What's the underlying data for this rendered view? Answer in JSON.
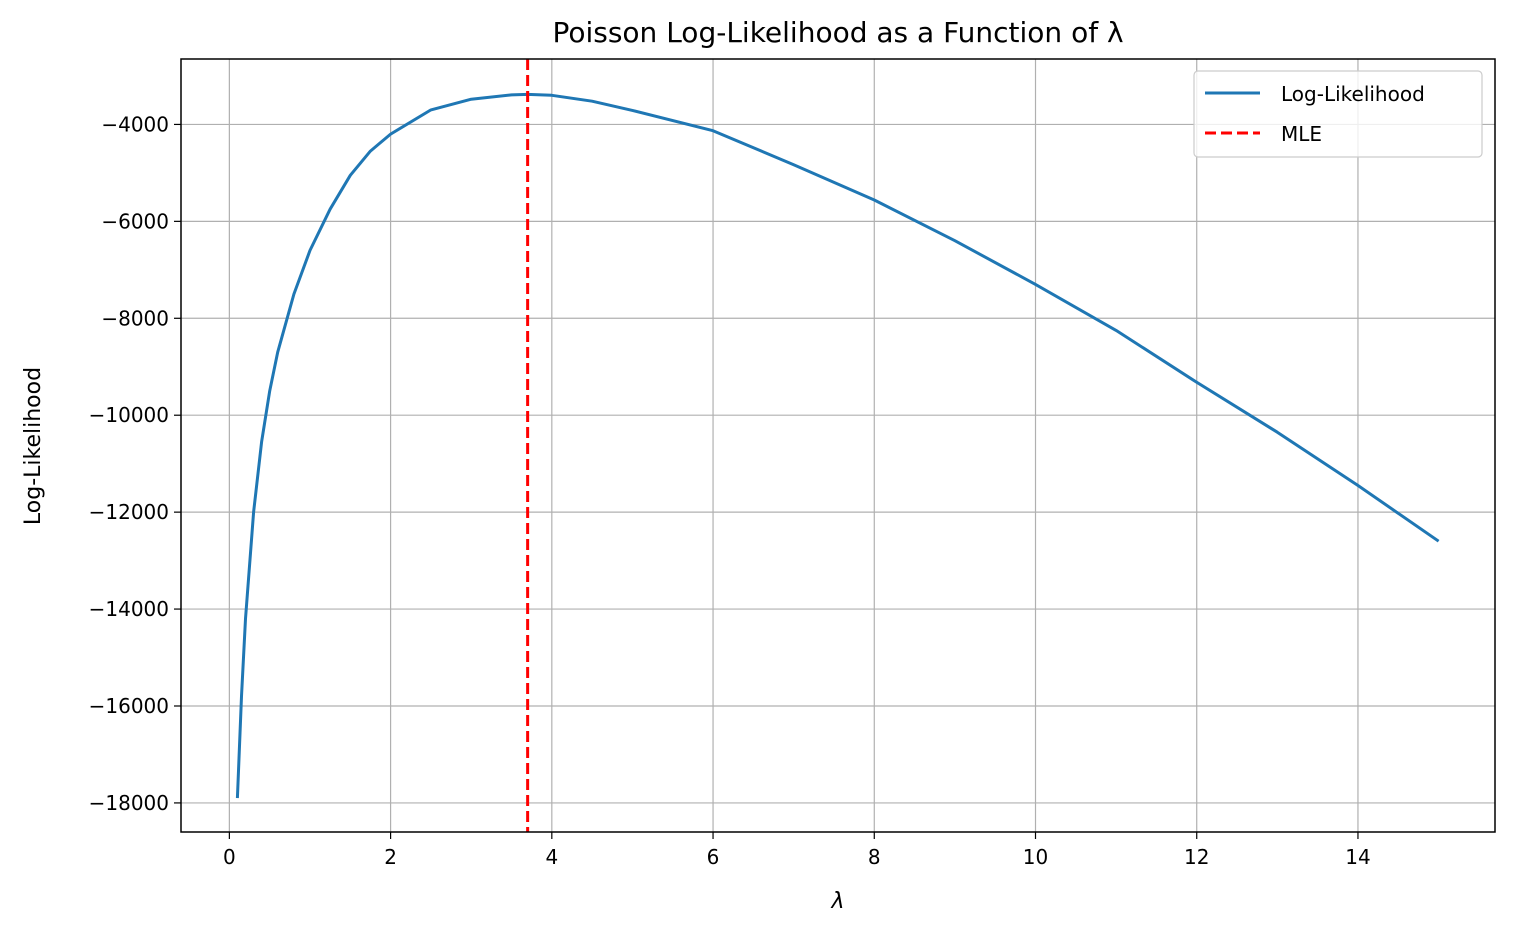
{
  "chart_data": {
    "type": "line",
    "title": "Poisson Log-Likelihood as a Function of λ",
    "xlabel": "λ",
    "ylabel": "Log-Likelihood",
    "xlim": [
      -0.6,
      15.7
    ],
    "ylim": [
      -18600,
      -2650
    ],
    "x_ticks": [
      0,
      2,
      4,
      6,
      8,
      10,
      12,
      14
    ],
    "y_ticks": [
      -4000,
      -6000,
      -8000,
      -10000,
      -12000,
      -14000,
      -16000,
      -18000
    ],
    "x_tick_labels": [
      "0",
      "2",
      "4",
      "6",
      "8",
      "10",
      "12",
      "14"
    ],
    "y_tick_labels": [
      "−4000",
      "−6000",
      "−8000",
      "−10000",
      "−12000",
      "−14000",
      "−16000",
      "−18000"
    ],
    "grid": true,
    "legend_position": "top-right",
    "series": [
      {
        "name": "Log-Likelihood",
        "color": "#1f77b4",
        "style": "solid",
        "x": [
          0.1,
          0.15,
          0.2,
          0.3,
          0.4,
          0.5,
          0.6,
          0.8,
          1.0,
          1.25,
          1.5,
          1.75,
          2.0,
          2.5,
          3.0,
          3.5,
          3.7,
          4.0,
          4.5,
          5.0,
          6.0,
          7.0,
          8.0,
          9.0,
          10.0,
          11.0,
          12.0,
          13.0,
          14.0,
          15.0
        ],
        "y": [
          -17900,
          -15800,
          -14200,
          -12000,
          -10550,
          -9500,
          -8700,
          -7500,
          -6600,
          -5750,
          -5050,
          -4550,
          -4200,
          -3700,
          -3480,
          -3390,
          -3380,
          -3400,
          -3520,
          -3710,
          -4130,
          -4830,
          -5560,
          -6400,
          -7300,
          -8250,
          -9320,
          -10350,
          -11450,
          -12600
        ]
      },
      {
        "name": "MLE",
        "color": "#ff0000",
        "style": "dashed",
        "x_value": 3.7
      }
    ]
  }
}
